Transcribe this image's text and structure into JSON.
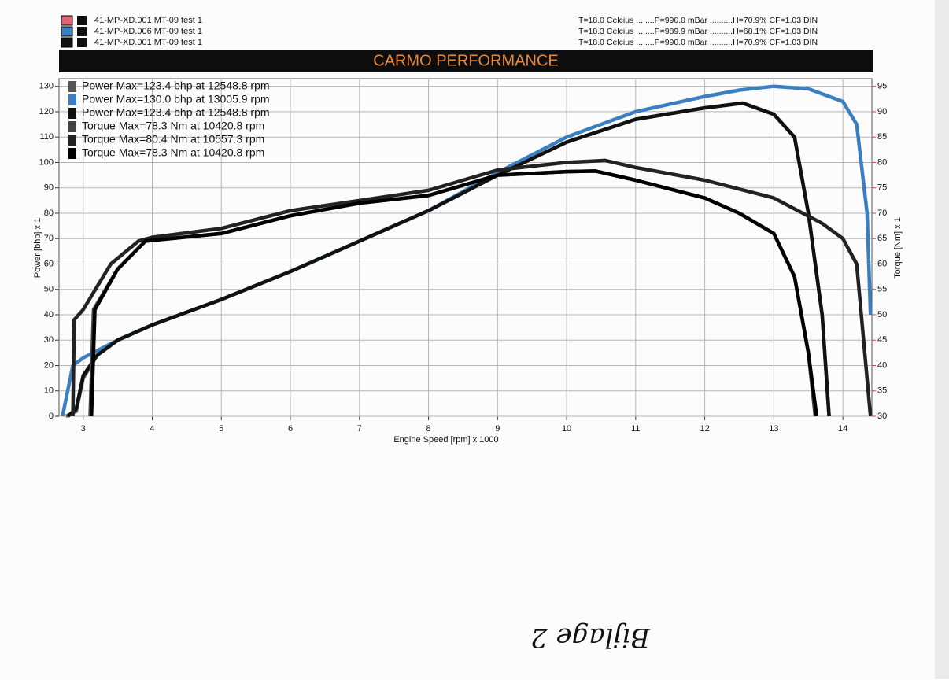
{
  "chart_data": {
    "type": "line",
    "title": "CARMO PERFORMANCE",
    "runs": [
      {
        "name": "41-MP-XD.001 MT-09   test 1",
        "conditions": "T=18.0 Celcius ........P=990.0 mBar ..........H=70.9% CF=1.03 DIN",
        "swatch_color": "#e06478"
      },
      {
        "name": "41-MP-XD.006 MT-09   test 1",
        "conditions": "T=18.3 Celcius ........P=989.9 mBar ..........H=68.1% CF=1.03 DIN",
        "swatch_color": "#3b7fc0"
      },
      {
        "name": "41-MP-XD.001 MT-09   test 1",
        "conditions": "T=18.0 Celcius ........P=990.0 mBar ..........H=70.9% CF=1.03 DIN",
        "swatch_color": "#111111"
      }
    ],
    "x_label": "Engine Speed [rpm] x 1000",
    "y_label": "Power [bhp] x 1",
    "y2_label": "Torque [Nm] x 1",
    "annotation": "Bijlage 2",
    "xlim": [
      2.65,
      14.42
    ],
    "xticks": [
      3,
      4,
      5,
      6,
      7,
      8,
      9,
      10,
      11,
      12,
      13,
      14
    ],
    "ylim": [
      0,
      133
    ],
    "yticks": [
      0,
      10,
      20,
      30,
      40,
      50,
      60,
      70,
      80,
      90,
      100,
      110,
      120,
      130
    ],
    "y2lim": [
      30,
      96.5
    ],
    "y2ticks": [
      30,
      35,
      40,
      45,
      50,
      55,
      60,
      65,
      70,
      75,
      80,
      85,
      90,
      95
    ],
    "grid": true,
    "legend": "upper left",
    "series": [
      {
        "name": "Power Max=123.4 bhp at 12548.8 rpm",
        "color": "#555555",
        "axis": "y",
        "x": [
          2.75,
          2.9,
          3.0,
          3.2,
          3.5,
          4,
          5,
          6,
          7,
          8,
          9,
          10,
          11,
          12,
          12.55,
          13,
          13.3,
          13.5,
          13.7,
          13.8
        ],
        "values": [
          0,
          2,
          15,
          24,
          30,
          36,
          46,
          57,
          69,
          81,
          95,
          108,
          117,
          121.5,
          123.4,
          119,
          110,
          80,
          40,
          0
        ]
      },
      {
        "name": "Power Max=130.0 bhp at 13005.9 rpm",
        "color": "#3b7fc0",
        "axis": "y",
        "x": [
          2.7,
          2.85,
          3.0,
          3.5,
          4,
          5,
          6,
          7,
          8,
          9,
          10,
          11,
          12,
          12.5,
          13.0,
          13.5,
          14,
          14.2,
          14.35,
          14.4
        ],
        "values": [
          0,
          20,
          23,
          30,
          36,
          46,
          57,
          69,
          81,
          96,
          110,
          120,
          126,
          128.5,
          130,
          129,
          124,
          115,
          80,
          40
        ]
      },
      {
        "name": "Power Max=123.4 bhp at 12548.8 rpm",
        "color": "#111111",
        "axis": "y",
        "x": [
          2.78,
          2.9,
          3.0,
          3.2,
          3.5,
          4,
          5,
          6,
          7,
          8,
          9,
          10,
          11,
          12,
          12.55,
          13,
          13.3,
          13.5,
          13.7,
          13.8
        ],
        "values": [
          0,
          3,
          16,
          24,
          30,
          36,
          46,
          57,
          69,
          81,
          95,
          108,
          117,
          121.5,
          123.4,
          119,
          110,
          80,
          40,
          0
        ]
      },
      {
        "name": "Torque  Max=78.3 Nm at 10420.8 rpm",
        "color": "#444444",
        "axis": "y2",
        "x": [
          3.1,
          3.15,
          3.5,
          3.9,
          5,
          6,
          7,
          8,
          9,
          10,
          10.42,
          11,
          12,
          12.5,
          13,
          13.3,
          13.5,
          13.6
        ],
        "values": [
          30,
          51,
          59,
          64.5,
          66,
          69.5,
          72,
          73.5,
          77.5,
          78.2,
          78.3,
          76.5,
          73,
          70,
          66,
          57.5,
          42.5,
          30
        ]
      },
      {
        "name": "Torque  Max=80.4 Nm at 10557.3 rpm",
        "color": "#222222",
        "axis": "y2",
        "x": [
          2.85,
          2.87,
          3.0,
          3.4,
          3.8,
          4,
          5,
          6,
          7,
          8,
          9,
          10,
          10.56,
          11,
          12,
          13,
          13.7,
          14,
          14.2,
          14.4
        ],
        "values": [
          30,
          49,
          51,
          60,
          64.5,
          65.25,
          67,
          70.5,
          72.5,
          74.5,
          78.5,
          80,
          80.4,
          79,
          76.5,
          73,
          68,
          65,
          60,
          30
        ]
      },
      {
        "name": "Torque  Max=78.3 Nm at 10420.8 rpm",
        "color": "#000000",
        "axis": "y2",
        "x": [
          3.12,
          3.17,
          3.5,
          3.9,
          5,
          6,
          7,
          8,
          9,
          10,
          10.42,
          11,
          12,
          12.5,
          13,
          13.3,
          13.5,
          13.62
        ],
        "values": [
          30,
          51,
          59,
          64.5,
          66,
          69.5,
          72,
          73.5,
          77.5,
          78.2,
          78.3,
          76.5,
          73,
          70,
          66,
          57.5,
          42.5,
          30
        ]
      }
    ]
  }
}
